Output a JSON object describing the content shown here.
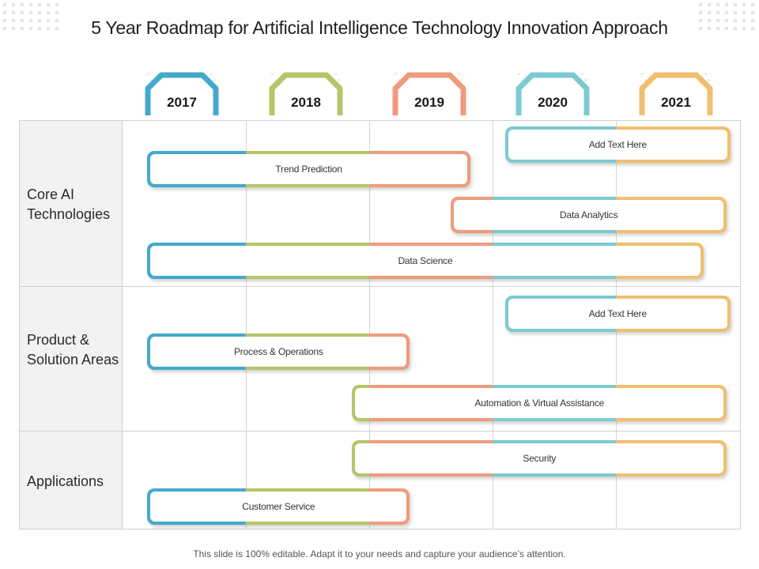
{
  "title": "5 Year Roadmap for Artificial Intelligence Technology Innovation Approach",
  "footer": "This slide is 100% editable. Adapt it to your needs and capture your audience’s attention.",
  "years": [
    {
      "label": "2017",
      "color": "#44a9cc"
    },
    {
      "label": "2018",
      "color": "#b7c46a"
    },
    {
      "label": "2019",
      "color": "#ee9b7c"
    },
    {
      "label": "2020",
      "color": "#7ccad0"
    },
    {
      "label": "2021",
      "color": "#f0bf70"
    }
  ],
  "rows": [
    {
      "label": "Core AI Technologies"
    },
    {
      "label": "Product & Solution Areas"
    },
    {
      "label": "Applications"
    }
  ],
  "bars": [
    {
      "label": "Add Text Here",
      "start": 2020.1,
      "end": 2021.93
    },
    {
      "label": "Trend Prediction",
      "start": 2017.2,
      "end": 2019.82
    },
    {
      "label": "Data Analytics",
      "start": 2019.66,
      "end": 2021.9
    },
    {
      "label": "Data Science",
      "start": 2017.2,
      "end": 2021.71
    },
    {
      "label": "Add Text Here",
      "start": 2020.1,
      "end": 2021.93
    },
    {
      "label": "Process & Operations",
      "start": 2017.2,
      "end": 2019.33
    },
    {
      "label": "Automation  & Virtual Assistance",
      "start": 2018.86,
      "end": 2021.9
    },
    {
      "label": "Security",
      "start": 2018.86,
      "end": 2021.9
    },
    {
      "label": "Customer Service",
      "start": 2017.2,
      "end": 2019.33
    }
  ]
}
